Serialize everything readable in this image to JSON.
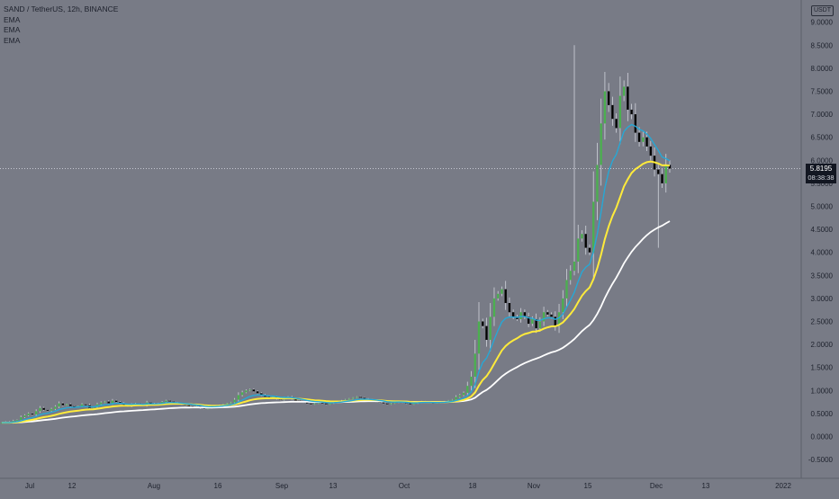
{
  "header": {
    "symbol_line": "SAND / TetherUS, 12h, BINANCE",
    "indicators": [
      "EMA",
      "EMA",
      "EMA"
    ],
    "currency": "USDT"
  },
  "price_tag": {
    "last": "5.8195",
    "countdown": "08:38:38"
  },
  "colors": {
    "background": "#787b86",
    "up": "#4caf50",
    "down": "#000000",
    "ema_fast": "#26a8d6",
    "ema_mid": "#ffeb3b",
    "ema_slow": "#ffffff"
  },
  "chart_data": {
    "type": "candlestick",
    "y_ticks": [
      "9.0000",
      "8.5000",
      "8.0000",
      "7.5000",
      "7.0000",
      "6.5000",
      "6.0000",
      "5.5000",
      "5.0000",
      "4.5000",
      "4.0000",
      "3.5000",
      "3.0000",
      "2.5000",
      "2.0000",
      "1.5000",
      "1.0000",
      "0.5000",
      "0.0000",
      "-0.5000"
    ],
    "x_ticks": [
      "Jul",
      "12",
      "Aug",
      "16",
      "Sep",
      "13",
      "Oct",
      "18",
      "Nov",
      "15",
      "Dec",
      "13",
      "2022"
    ],
    "ylim": [
      -0.5,
      9.0
    ],
    "current_price": 5.8195,
    "close": [
      0.3,
      0.32,
      0.3,
      0.34,
      0.36,
      0.42,
      0.46,
      0.5,
      0.48,
      0.55,
      0.62,
      0.58,
      0.56,
      0.6,
      0.65,
      0.72,
      0.68,
      0.7,
      0.66,
      0.64,
      0.66,
      0.7,
      0.68,
      0.62,
      0.64,
      0.7,
      0.74,
      0.76,
      0.72,
      0.78,
      0.75,
      0.72,
      0.68,
      0.66,
      0.7,
      0.72,
      0.7,
      0.68,
      0.74,
      0.72,
      0.7,
      0.72,
      0.75,
      0.78,
      0.76,
      0.74,
      0.72,
      0.7,
      0.68,
      0.66,
      0.64,
      0.66,
      0.62,
      0.6,
      0.62,
      0.64,
      0.66,
      0.68,
      0.7,
      0.72,
      0.74,
      0.8,
      0.9,
      0.96,
      1.0,
      1.02,
      0.98,
      0.94,
      0.9,
      0.86,
      0.84,
      0.86,
      0.82,
      0.8,
      0.84,
      0.86,
      0.82,
      0.78,
      0.76,
      0.74,
      0.72,
      0.7,
      0.72,
      0.74,
      0.72,
      0.7,
      0.72,
      0.74,
      0.76,
      0.78,
      0.8,
      0.82,
      0.84,
      0.86,
      0.84,
      0.82,
      0.8,
      0.78,
      0.76,
      0.74,
      0.72,
      0.7,
      0.72,
      0.74,
      0.76,
      0.74,
      0.72,
      0.7,
      0.72,
      0.74,
      0.76,
      0.75,
      0.74,
      0.73,
      0.74,
      0.75,
      0.76,
      0.78,
      0.8,
      0.86,
      0.9,
      0.95,
      1.1,
      1.3,
      1.8,
      2.5,
      2.4,
      2.1,
      2.6,
      3.0,
      3.1,
      3.2,
      2.9,
      2.7,
      2.6,
      2.55,
      2.7,
      2.6,
      2.45,
      2.55,
      2.35,
      2.5,
      2.7,
      2.65,
      2.6,
      2.4,
      2.7,
      3.0,
      3.4,
      3.6,
      3.8,
      4.3,
      4.4,
      4.1,
      4.0,
      5.1,
      5.9,
      6.8,
      7.5,
      7.2,
      6.9,
      6.7,
      7.4,
      7.6,
      7.1,
      7.0,
      6.6,
      6.4,
      6.5,
      6.3,
      6.1,
      5.8,
      5.7,
      5.5,
      5.9,
      5.8195
    ]
  }
}
